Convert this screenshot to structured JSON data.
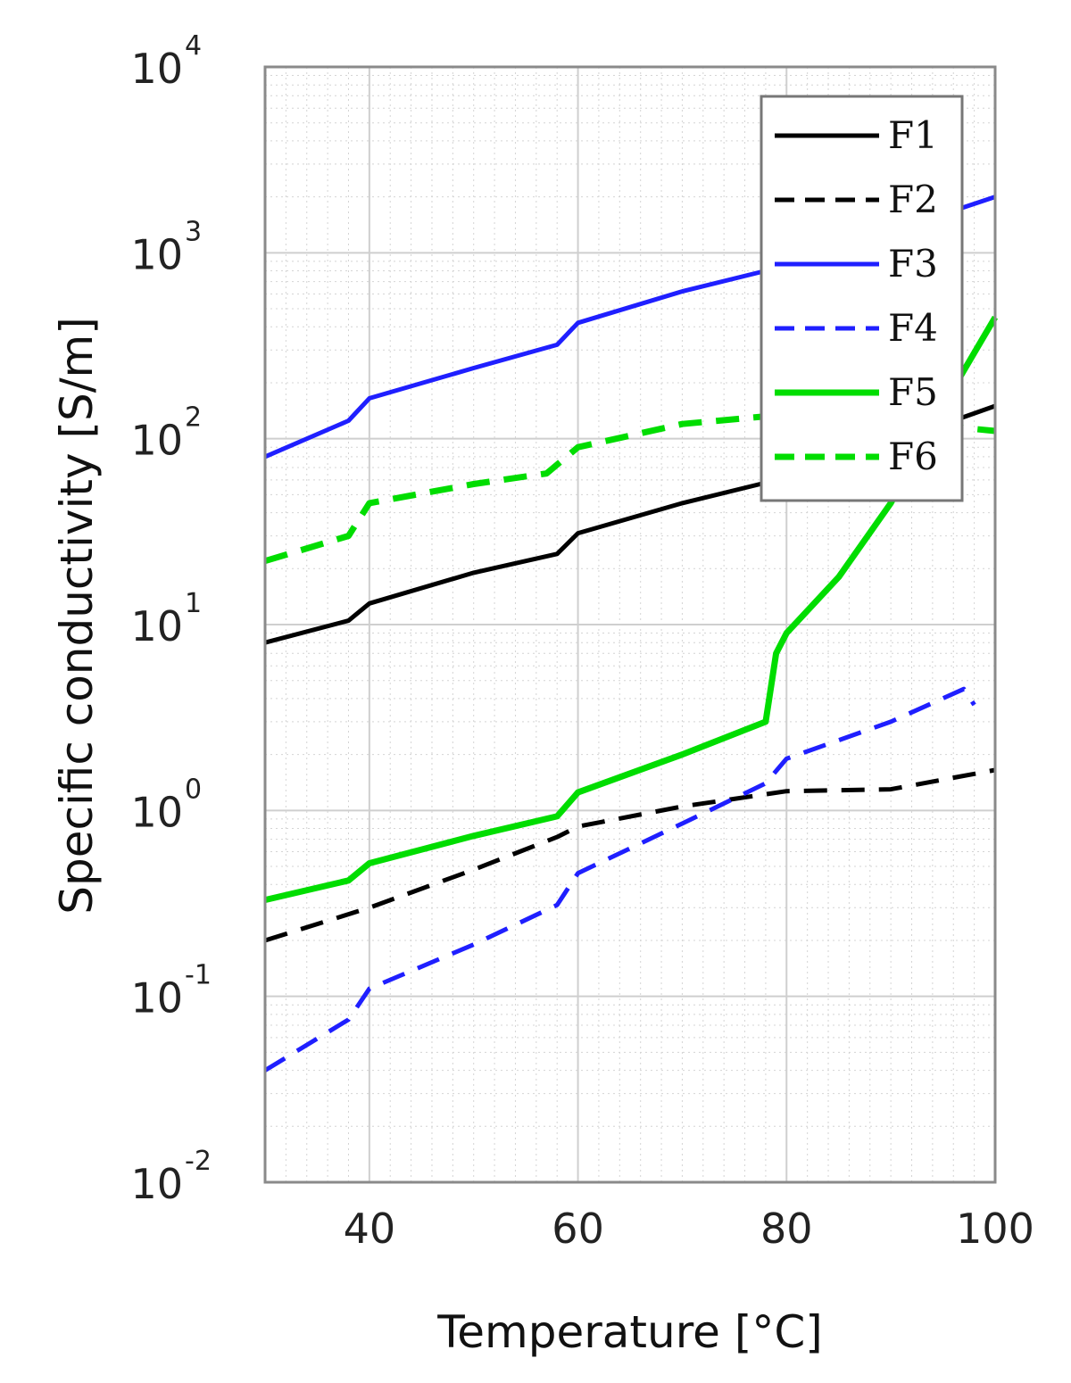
{
  "chart_data": {
    "type": "line",
    "xlabel": "Temperature [°C]",
    "ylabel": "Specific conductivity [S/m]",
    "xlim": [
      30,
      100
    ],
    "ylim": [
      0.01,
      10000
    ],
    "yscale": "log",
    "grid": true,
    "minor_grid": true,
    "xticks": [
      40,
      60,
      80,
      100
    ],
    "xtick_labels": [
      "40",
      "60",
      "80",
      "100"
    ],
    "yticks": [
      0.01,
      0.1,
      1,
      10,
      100,
      1000,
      10000
    ],
    "ytick_labels": [
      {
        "base": "10",
        "exp": "-2"
      },
      {
        "base": "10",
        "exp": "-1"
      },
      {
        "base": "10",
        "exp": "0"
      },
      {
        "base": "10",
        "exp": "1"
      },
      {
        "base": "10",
        "exp": "2"
      },
      {
        "base": "10",
        "exp": "3"
      },
      {
        "base": "10",
        "exp": "4"
      }
    ],
    "legend_position": "top-right",
    "series": [
      {
        "name": "F1",
        "color": "#000000",
        "dash": "solid",
        "x": [
          30,
          38,
          40,
          50,
          58,
          60,
          70,
          78,
          80,
          90,
          100
        ],
        "y": [
          8,
          10.5,
          13,
          19,
          24,
          31,
          45,
          58,
          62,
          95,
          150
        ]
      },
      {
        "name": "F2",
        "color": "#000000",
        "dash": "dashed",
        "x": [
          30,
          40,
          50,
          58,
          60,
          70,
          80,
          90,
          100
        ],
        "y": [
          0.2,
          0.3,
          0.48,
          0.72,
          0.82,
          1.05,
          1.27,
          1.3,
          1.65
        ]
      },
      {
        "name": "F3",
        "color": "#1f1fff",
        "dash": "solid",
        "x": [
          30,
          38,
          40,
          50,
          58,
          60,
          70,
          78,
          80,
          90,
          100
        ],
        "y": [
          80,
          125,
          165,
          240,
          320,
          420,
          620,
          800,
          850,
          1300,
          2000
        ]
      },
      {
        "name": "F4",
        "color": "#1f1fff",
        "dash": "dashed",
        "x": [
          30,
          38,
          40,
          50,
          58,
          60,
          70,
          78,
          80,
          90,
          97,
          98
        ],
        "y": [
          0.04,
          0.075,
          0.11,
          0.19,
          0.31,
          0.46,
          0.85,
          1.4,
          1.9,
          3.0,
          4.5,
          3.7
        ]
      },
      {
        "name": "F5",
        "color": "#00dd00",
        "dash": "solid",
        "x": [
          30,
          38,
          40,
          50,
          58,
          60,
          70,
          78,
          79,
          80,
          85,
          90,
          95,
          100
        ],
        "y": [
          0.33,
          0.42,
          0.52,
          0.73,
          0.93,
          1.25,
          2.0,
          3.0,
          7.0,
          9.0,
          18,
          45,
          150,
          450
        ]
      },
      {
        "name": "F6",
        "color": "#00dd00",
        "dash": "dashed",
        "x": [
          30,
          38,
          40,
          50,
          57,
          60,
          70,
          80,
          90,
          100
        ],
        "y": [
          22,
          30,
          45,
          57,
          65,
          90,
          120,
          135,
          125,
          110
        ]
      }
    ]
  }
}
